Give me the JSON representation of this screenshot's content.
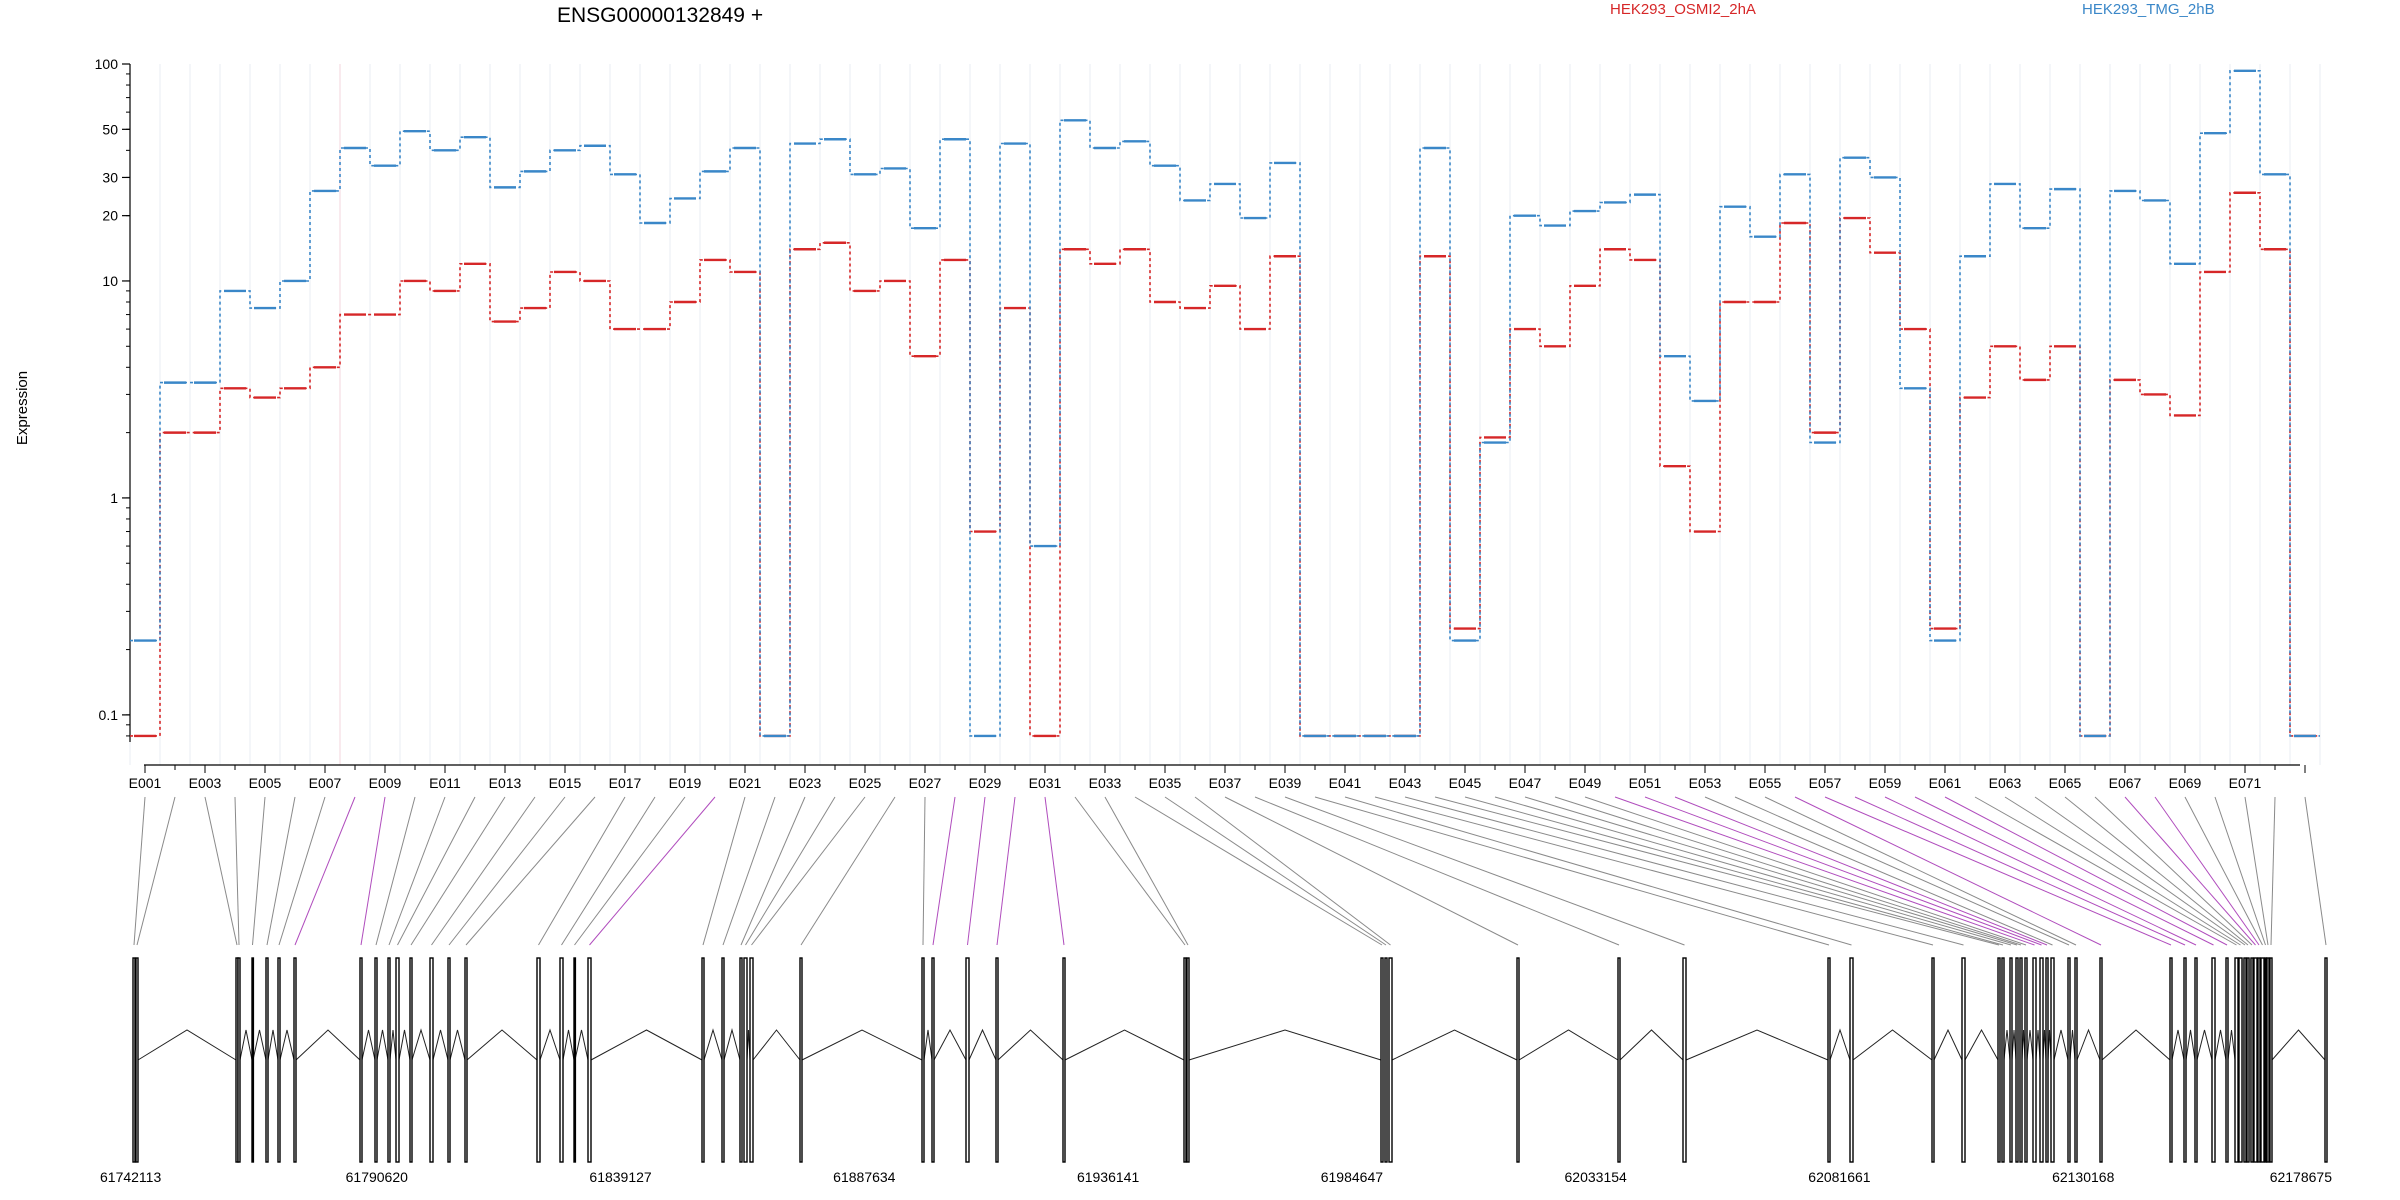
{
  "chart_data": {
    "type": "line",
    "title": "ENSG00000132849 +",
    "ylabel": "Expression",
    "xlabel": "",
    "yscale": "log",
    "ylim": [
      0.075,
      100
    ],
    "y_ticks": [
      0.1,
      1,
      10,
      20,
      30,
      50,
      100
    ],
    "y_tick_labels": [
      "0.1",
      "1",
      "10",
      "20",
      "30",
      "50",
      "100"
    ],
    "exon_count": 73,
    "exon_labels": [
      "E001",
      "E003",
      "E005",
      "E007",
      "E009",
      "E011",
      "E013",
      "E015",
      "E017",
      "E019",
      "E021",
      "E023",
      "E025",
      "E027",
      "E029",
      "E031",
      "E033",
      "E035",
      "E037",
      "E039",
      "E041",
      "E043",
      "E045",
      "E047",
      "E049",
      "E051",
      "E053",
      "E055",
      "E057",
      "E059",
      "E061",
      "E063",
      "E065",
      "E067",
      "E069",
      "E071"
    ],
    "series": [
      {
        "name": "HEK293_OSMI2_2hA",
        "color": "#d62728",
        "values": [
          0.08,
          2,
          2,
          3.2,
          2.9,
          3.2,
          4,
          7,
          7,
          10,
          9,
          12,
          6.5,
          7.5,
          11,
          10,
          6,
          6,
          8,
          12.5,
          11,
          0.08,
          14,
          15,
          9,
          10,
          4.5,
          12.5,
          0.7,
          7.5,
          0.08,
          14,
          12,
          14,
          8,
          7.5,
          9.5,
          6,
          13,
          0.08,
          0.08,
          0.08,
          0.08,
          13,
          0.25,
          1.9,
          6,
          5,
          9.5,
          14,
          12.5,
          1.4,
          0.7,
          8,
          8,
          18.5,
          2,
          19.5,
          13.5,
          6,
          0.25,
          2.9,
          5,
          3.5,
          5,
          0.08,
          3.5,
          3,
          2.4,
          11,
          25.5,
          14,
          0.08
        ]
      },
      {
        "name": "HEK293_TMG_2hB",
        "color": "#3a87c8",
        "values": [
          0.22,
          3.4,
          3.4,
          9,
          7.5,
          10,
          26,
          41,
          34,
          49,
          40,
          46,
          27,
          32,
          40,
          42,
          31,
          18.5,
          24,
          32,
          41,
          0.08,
          43,
          45,
          31,
          33,
          17.5,
          45,
          0.08,
          43,
          0.6,
          55,
          41,
          44,
          34,
          23.5,
          28,
          19.5,
          35,
          0.08,
          0.08,
          0.08,
          0.08,
          41,
          0.22,
          1.8,
          20,
          18,
          21,
          23,
          25,
          4.5,
          2.8,
          22,
          16,
          31,
          1.8,
          37,
          30,
          3.2,
          0.22,
          13,
          28,
          17.5,
          26.5,
          0.08,
          26,
          23.5,
          12,
          48,
          93,
          31,
          0.08
        ]
      }
    ],
    "genomic_axis": {
      "labels": [
        "61742113",
        "61790620",
        "61839127",
        "61887634",
        "61936141",
        "61984647",
        "62033154",
        "62081661",
        "62130168",
        "62178675"
      ]
    }
  }
}
